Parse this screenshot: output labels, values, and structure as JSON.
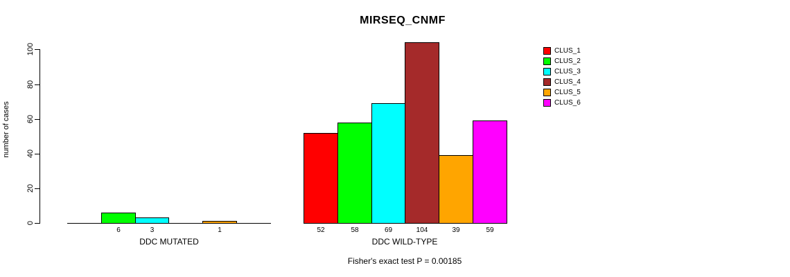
{
  "title": "MIRSEQ_CNMF",
  "footer": "Fisher's exact test P = 0.00185",
  "chart_data": {
    "type": "bar",
    "title": "MIRSEQ_CNMF",
    "xlabel": "",
    "ylabel": "number of cases",
    "ylim": [
      0,
      100
    ],
    "yticks": [
      0,
      20,
      40,
      60,
      80,
      100
    ],
    "grid": false,
    "legend_position": "right",
    "categories": [
      "DDC MUTATED",
      "DDC WILD-TYPE"
    ],
    "series": [
      {
        "name": "CLUS_1",
        "color": "#FF0000",
        "values": [
          0,
          52
        ]
      },
      {
        "name": "CLUS_2",
        "color": "#00FF00",
        "values": [
          6,
          58
        ]
      },
      {
        "name": "CLUS_3",
        "color": "#00FFFF",
        "values": [
          3,
          69
        ]
      },
      {
        "name": "CLUS_4",
        "color": "#A52A2A",
        "values": [
          0,
          104
        ]
      },
      {
        "name": "CLUS_5",
        "color": "#FFA500",
        "values": [
          1,
          39
        ]
      },
      {
        "name": "CLUS_6",
        "color": "#FF00FF",
        "values": [
          0,
          59
        ]
      }
    ],
    "bar_value_labels": {
      "DDC MUTATED": [
        null,
        6,
        3,
        null,
        1,
        null
      ],
      "DDC WILD-TYPE": [
        52,
        58,
        69,
        104,
        39,
        59
      ]
    },
    "annotation": "Fisher's exact test P = 0.00185"
  }
}
